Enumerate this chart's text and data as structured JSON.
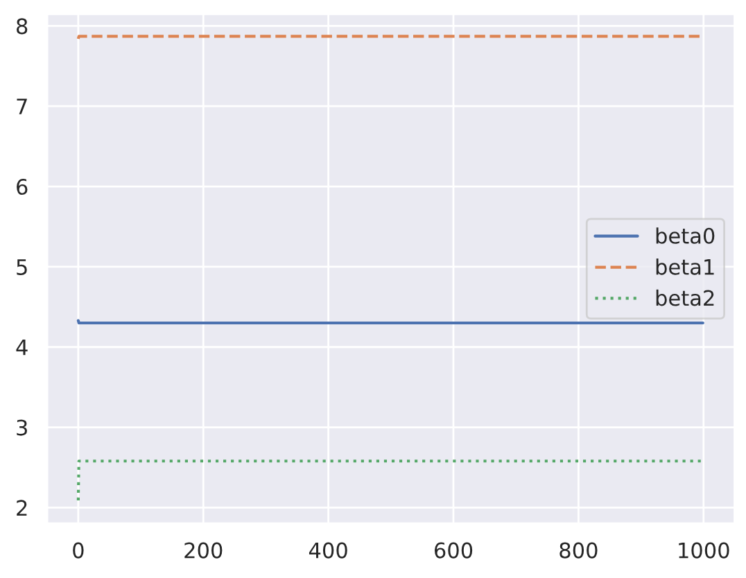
{
  "chart_data": {
    "type": "line",
    "x": [
      0,
      1,
      999
    ],
    "series": [
      {
        "name": "beta0",
        "color": "#4c72b0",
        "line_style": "solid",
        "values": [
          4.33,
          4.3,
          4.3
        ]
      },
      {
        "name": "beta1",
        "color": "#dd8452",
        "line_style": "dashed",
        "values": [
          7.84,
          7.87,
          7.87
        ]
      },
      {
        "name": "beta2",
        "color": "#55a868",
        "line_style": "dotted",
        "values": [
          2.09,
          2.58,
          2.58
        ]
      }
    ],
    "xlim": [
      -50,
      1050
    ],
    "ylim": [
      1.8,
      8.15
    ],
    "xticks": [
      0,
      200,
      400,
      600,
      800,
      1000
    ],
    "yticks": [
      2,
      3,
      4,
      5,
      6,
      7,
      8
    ],
    "grid": true,
    "legend": "right"
  }
}
